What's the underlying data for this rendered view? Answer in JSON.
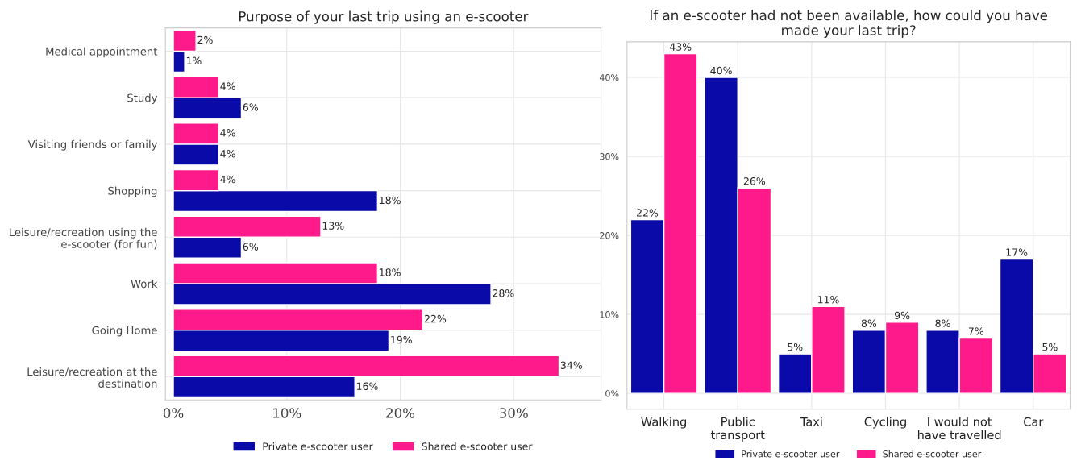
{
  "chart_data": [
    {
      "type": "bar",
      "orientation": "horizontal",
      "title": "Purpose of your last trip using an e-scooter",
      "categories": [
        "Medical appointment",
        "Study",
        "Visiting friends or family",
        "Shopping",
        "Leisure/recreation using the\ne-scooter (for fun)",
        "Work",
        "Going Home",
        "Leisure/recreation at the\ndestination"
      ],
      "series": [
        {
          "name": "Private e-scooter user",
          "color": "#0a0aa8",
          "values": [
            1,
            6,
            4,
            18,
            6,
            28,
            19,
            16
          ],
          "value_labels": [
            "1%",
            "6%",
            "4%",
            "18%",
            "6%",
            "28%",
            "19%",
            "16%"
          ]
        },
        {
          "name": "Shared e-scooter user",
          "color": "#ff1a8c",
          "values": [
            2,
            4,
            4,
            4,
            13,
            18,
            22,
            34
          ],
          "value_labels": [
            "2%",
            "4%",
            "4%",
            "4%",
            "13%",
            "18%",
            "22%",
            "34%"
          ]
        }
      ],
      "xlim": [
        -0.7,
        37.7
      ],
      "xticks": [
        {
          "value": 0,
          "label": "0%"
        },
        {
          "value": 10,
          "label": "10%"
        },
        {
          "value": 20,
          "label": "20%"
        },
        {
          "value": 30,
          "label": "30%"
        }
      ],
      "grid": true,
      "legend": "bottom"
    },
    {
      "type": "bar",
      "title": "If an e-scooter had not been available, how could you have\nmade your last trip?",
      "categories": [
        "Walking",
        "Public\ntransport",
        "Taxi",
        "Cycling",
        "I would not\nhave travelled",
        "Car"
      ],
      "series": [
        {
          "name": "Private e-scooter user",
          "color": "#0a0aa8",
          "values": [
            22,
            40,
            5,
            8,
            8,
            17
          ],
          "value_labels": [
            "22%",
            "40%",
            "5%",
            "8%",
            "8%",
            "17%"
          ]
        },
        {
          "name": "Shared e-scooter user",
          "color": "#ff1a8c",
          "values": [
            43,
            26,
            11,
            9,
            7,
            5
          ],
          "value_labels": [
            "43%",
            "26%",
            "11%",
            "9%",
            "7%",
            "5%"
          ]
        }
      ],
      "ylim": [
        -2,
        44.5
      ],
      "yticks": [
        {
          "value": 0,
          "label": "0%"
        },
        {
          "value": 10,
          "label": "10%"
        },
        {
          "value": 20,
          "label": "20%"
        },
        {
          "value": 30,
          "label": "30%"
        },
        {
          "value": 40,
          "label": "40%"
        }
      ],
      "grid": true,
      "legend": "bottom"
    }
  ]
}
